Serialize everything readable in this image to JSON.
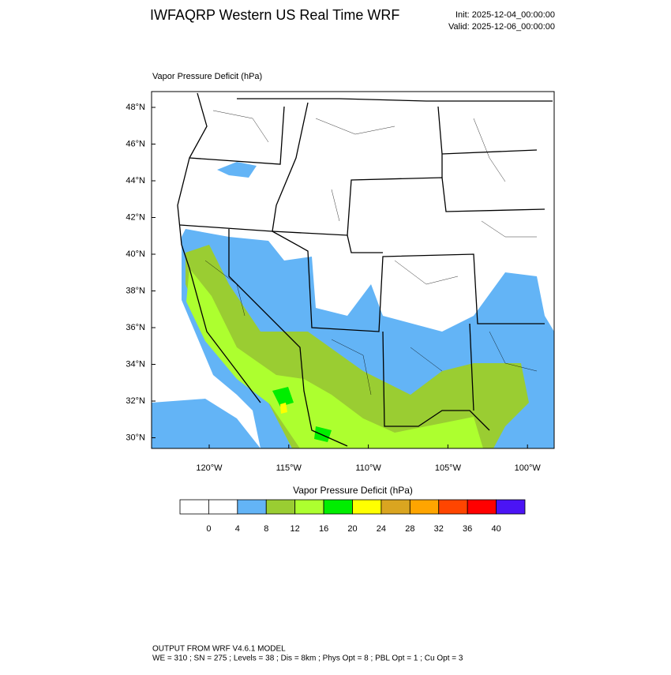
{
  "header": {
    "title": "IWFAQRP Western US Real Time WRF",
    "init": "Init: 2025-12-04_00:00:00",
    "valid": "Valid: 2025-12-06_00:00:00"
  },
  "map": {
    "field_label": "Vapor Pressure Deficit   (hPa)",
    "lat_labels": [
      "48°N",
      "46°N",
      "44°N",
      "42°N",
      "40°N",
      "38°N",
      "36°N",
      "34°N",
      "32°N",
      "30°N"
    ],
    "lon_labels": [
      "120°W",
      "115°W",
      "110°W",
      "105°W",
      "100°W"
    ]
  },
  "colorbar": {
    "title": "Vapor Pressure Deficit  (hPa)",
    "colors": [
      "#ffffff",
      "#ffffff",
      "#63b4f6",
      "#9acd32",
      "#adff2f",
      "#00ee00",
      "#ffff00",
      "#daa520",
      "#ffa500",
      "#ff4500",
      "#ff0000",
      "#4b14f5"
    ],
    "ticks": [
      "0",
      "4",
      "8",
      "12",
      "16",
      "20",
      "24",
      "28",
      "32",
      "36",
      "40"
    ]
  },
  "footer": {
    "line1": "OUTPUT FROM WRF V4.6.1 MODEL",
    "line2": "WE = 310 ; SN = 275 ; Levels = 38 ; Dis = 8km ; Phys Opt = 8 ; PBL Opt = 1 ; Cu Opt = 3"
  }
}
